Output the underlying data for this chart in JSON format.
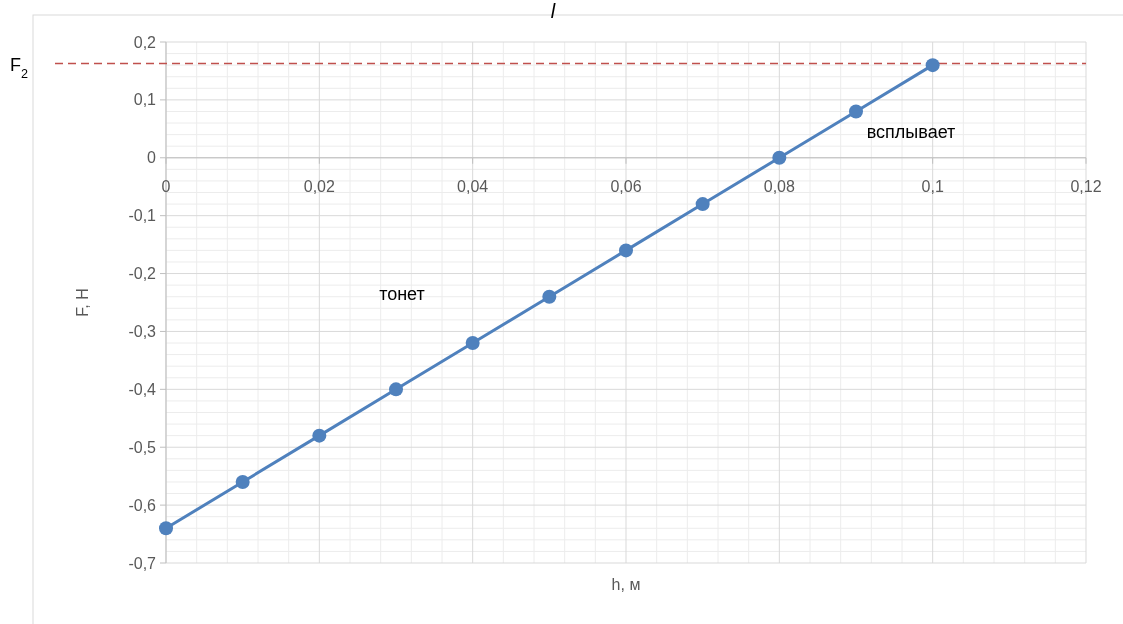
{
  "chart_data": {
    "type": "line",
    "xlabel": "h, м",
    "ylabel": "F, Н",
    "x": [
      0,
      0.01,
      0.02,
      0.03,
      0.04,
      0.05,
      0.06,
      0.07,
      0.08,
      0.09,
      0.1
    ],
    "series": [
      {
        "color": "#4f81bd",
        "values": [
          -0.64,
          -0.56,
          -0.48,
          -0.4,
          -0.32,
          -0.24,
          -0.16,
          -0.08,
          0,
          0.08,
          0.16
        ]
      }
    ],
    "xlim": [
      0,
      0.12
    ],
    "xticks": [
      {
        "value": 0,
        "label": "0"
      },
      {
        "value": 0.02,
        "label": "0,02"
      },
      {
        "value": 0.04,
        "label": "0,04"
      },
      {
        "value": 0.06,
        "label": "0,06"
      },
      {
        "value": 0.08,
        "label": "0,08"
      },
      {
        "value": 0.1,
        "label": "0,1"
      },
      {
        "value": 0.12,
        "label": "0,12"
      }
    ],
    "ylim": [
      -0.7,
      0.2
    ],
    "yticks": [
      {
        "value": -0.7,
        "label": "-0,7"
      },
      {
        "value": -0.6,
        "label": "-0,6"
      },
      {
        "value": -0.5,
        "label": "-0,5"
      },
      {
        "value": -0.4,
        "label": "-0,4"
      },
      {
        "value": -0.3,
        "label": "-0,3"
      },
      {
        "value": -0.2,
        "label": "-0,2"
      },
      {
        "value": -0.1,
        "label": "-0,1"
      },
      {
        "value": 0,
        "label": "0"
      },
      {
        "value": 0.1,
        "label": "0,1"
      },
      {
        "value": 0.2,
        "label": "0,2"
      }
    ],
    "ref_lines": [
      {
        "axis": "y",
        "value": 0.163,
        "label": "F$_{2}$",
        "color": "#c0504d",
        "line_style": "dashed"
      }
    ],
    "annotations": [
      "l",
      "тонет",
      "всплывает"
    ],
    "grid": true,
    "marker": "circle",
    "line_style": "solid"
  }
}
